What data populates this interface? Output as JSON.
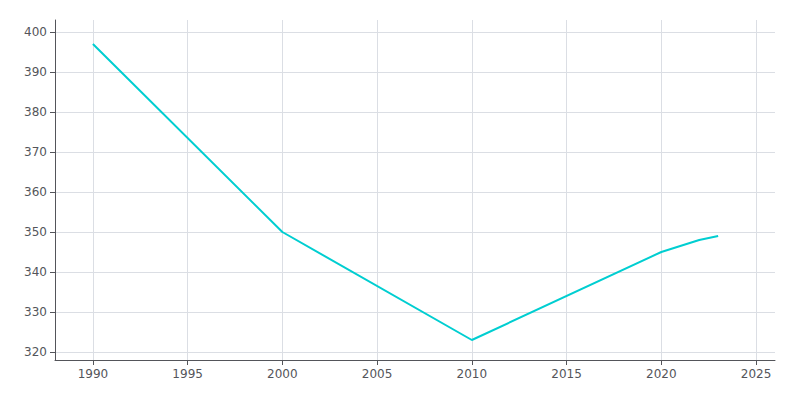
{
  "chart_data": {
    "type": "line",
    "x": [
      1990,
      2000,
      2010,
      2020,
      2022,
      2023
    ],
    "values": [
      397,
      350,
      323,
      345,
      348,
      349
    ],
    "color": "#00CED1",
    "xlim": [
      1988,
      2026
    ],
    "xticks": [
      1990,
      1995,
      2000,
      2005,
      2010,
      2015,
      2020,
      2025
    ],
    "ylim": [
      318,
      403
    ],
    "yticks": [
      320,
      330,
      340,
      350,
      360,
      370,
      380,
      390,
      400
    ],
    "grid": true
  }
}
